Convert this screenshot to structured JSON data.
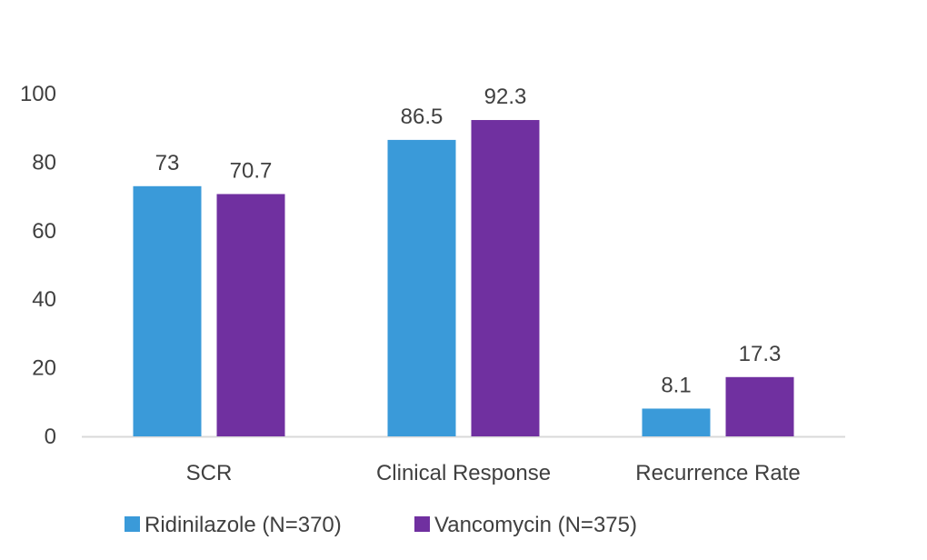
{
  "chart_data": {
    "type": "bar",
    "categories": [
      "SCR",
      "Clinical Response",
      "Recurrence Rate"
    ],
    "series": [
      {
        "name": "Ridinilazole (N=370)",
        "color": "#3a9ad9",
        "values": [
          73,
          86.5,
          8.1
        ],
        "labels": [
          "73",
          "86.5",
          "8.1"
        ]
      },
      {
        "name": "Vancomycin (N=375)",
        "color": "#7030a0",
        "values": [
          70.7,
          92.3,
          17.3
        ],
        "labels": [
          "70.7",
          "92.3",
          "17.3"
        ]
      }
    ],
    "ylim": [
      0,
      100
    ],
    "yticks": [
      "0",
      "20",
      "40",
      "60",
      "80",
      "100"
    ],
    "grid": false,
    "legend": "bottom-left",
    "axis_color": "#d9d9d9",
    "text_color": "#404040"
  }
}
